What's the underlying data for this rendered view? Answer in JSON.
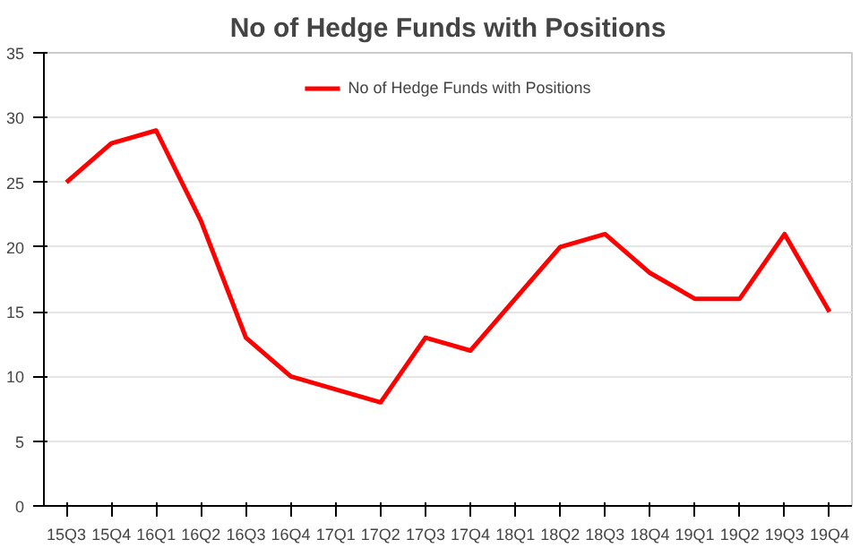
{
  "chart_data": {
    "type": "line",
    "title": "No of Hedge Funds with Positions",
    "categories": [
      "15Q3",
      "15Q4",
      "16Q1",
      "16Q2",
      "16Q3",
      "16Q4",
      "17Q1",
      "17Q2",
      "17Q3",
      "17Q4",
      "18Q1",
      "18Q2",
      "18Q3",
      "18Q4",
      "19Q1",
      "19Q2",
      "19Q3",
      "19Q4"
    ],
    "series": [
      {
        "name": "No of Hedge Funds with Positions",
        "color": "#ff0000",
        "values": [
          25,
          28,
          29,
          22,
          13,
          10,
          9,
          8,
          13,
          12,
          16,
          20,
          21,
          18,
          16,
          16,
          21,
          15
        ]
      }
    ],
    "ylim": [
      0,
      35
    ],
    "yticks": [
      0,
      5,
      10,
      15,
      20,
      25,
      30,
      35
    ],
    "grid": "y",
    "legend": "top",
    "marker": "none",
    "line_style": "solid"
  }
}
